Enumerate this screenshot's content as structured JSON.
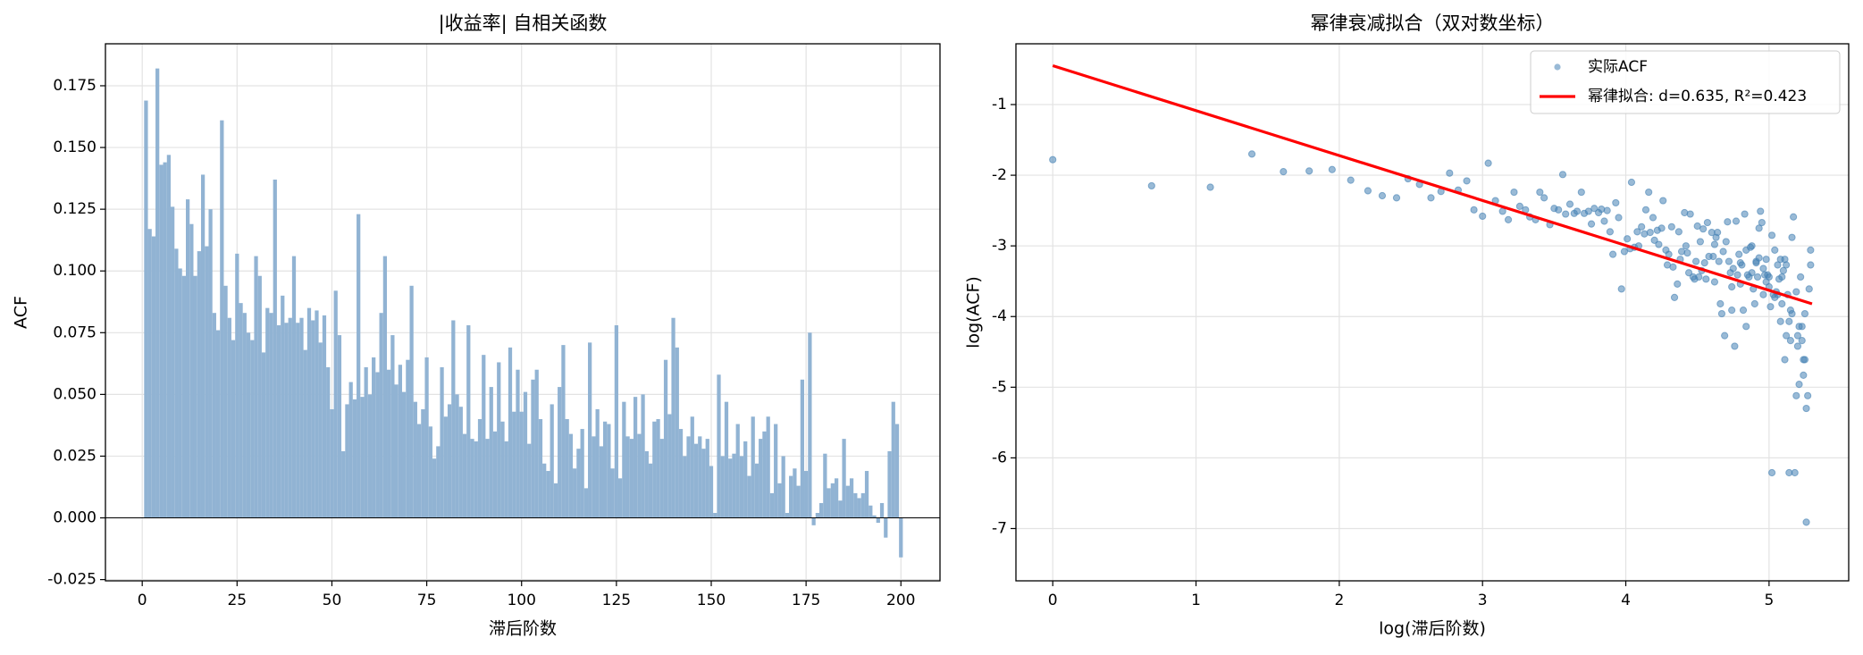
{
  "chart_data": [
    {
      "type": "bar",
      "title": "|收益率| 自相关函数",
      "xlabel": "滞后阶数",
      "ylabel": "ACF",
      "color": "#91b3d3",
      "grid": true,
      "x": [
        1,
        2,
        3,
        4,
        5,
        6,
        7,
        8,
        9,
        10,
        11,
        12,
        13,
        14,
        15,
        16,
        17,
        18,
        19,
        20,
        21,
        22,
        23,
        24,
        25,
        26,
        27,
        28,
        29,
        30,
        31,
        32,
        33,
        34,
        35,
        36,
        37,
        38,
        39,
        40,
        41,
        42,
        43,
        44,
        45,
        46,
        47,
        48,
        49,
        50,
        51,
        52,
        53,
        54,
        55,
        56,
        57,
        58,
        59,
        60,
        61,
        62,
        63,
        64,
        65,
        66,
        67,
        68,
        69,
        70,
        71,
        72,
        73,
        74,
        75,
        76,
        77,
        78,
        79,
        80,
        81,
        82,
        83,
        84,
        85,
        86,
        87,
        88,
        89,
        90,
        91,
        92,
        93,
        94,
        95,
        96,
        97,
        98,
        99,
        100,
        101,
        102,
        103,
        104,
        105,
        106,
        107,
        108,
        109,
        110,
        111,
        112,
        113,
        114,
        115,
        116,
        117,
        118,
        119,
        120,
        121,
        122,
        123,
        124,
        125,
        126,
        127,
        128,
        129,
        130,
        131,
        132,
        133,
        134,
        135,
        136,
        137,
        138,
        139,
        140,
        141,
        142,
        143,
        144,
        145,
        146,
        147,
        148,
        149,
        150,
        151,
        152,
        153,
        154,
        155,
        156,
        157,
        158,
        159,
        160,
        161,
        162,
        163,
        164,
        165,
        166,
        167,
        168,
        169,
        170,
        171,
        172,
        173,
        174,
        175,
        176,
        177,
        178,
        179,
        180,
        181,
        182,
        183,
        184,
        185,
        186,
        187,
        188,
        189,
        190,
        191,
        192,
        193,
        194,
        195,
        196,
        197,
        198,
        199,
        200
      ],
      "values": [
        0.169,
        0.117,
        0.114,
        0.182,
        0.143,
        0.144,
        0.147,
        0.126,
        0.109,
        0.101,
        0.098,
        0.129,
        0.119,
        0.098,
        0.108,
        0.139,
        0.11,
        0.125,
        0.083,
        0.076,
        0.161,
        0.094,
        0.081,
        0.072,
        0.107,
        0.087,
        0.083,
        0.075,
        0.072,
        0.106,
        0.098,
        0.067,
        0.085,
        0.083,
        0.137,
        0.078,
        0.09,
        0.079,
        0.081,
        0.106,
        0.079,
        0.081,
        0.068,
        0.085,
        0.08,
        0.084,
        0.071,
        0.082,
        0.061,
        0.044,
        0.092,
        0.074,
        0.027,
        0.046,
        0.055,
        0.048,
        0.123,
        0.049,
        0.061,
        0.05,
        0.065,
        0.059,
        0.083,
        0.106,
        0.06,
        0.074,
        0.054,
        0.062,
        0.051,
        0.064,
        0.094,
        0.047,
        0.038,
        0.044,
        0.065,
        0.037,
        0.024,
        0.029,
        0.061,
        0.041,
        0.046,
        0.08,
        0.05,
        0.045,
        0.034,
        0.078,
        0.032,
        0.031,
        0.04,
        0.066,
        0.032,
        0.053,
        0.035,
        0.063,
        0.039,
        0.031,
        0.069,
        0.043,
        0.06,
        0.043,
        0.051,
        0.03,
        0.056,
        0.06,
        0.04,
        0.022,
        0.019,
        0.046,
        0.014,
        0.053,
        0.07,
        0.04,
        0.034,
        0.02,
        0.028,
        0.036,
        0.012,
        0.071,
        0.033,
        0.044,
        0.029,
        0.039,
        0.038,
        0.02,
        0.078,
        0.016,
        0.047,
        0.033,
        0.032,
        0.049,
        0.034,
        0.05,
        0.027,
        0.022,
        0.039,
        0.04,
        0.032,
        0.064,
        0.042,
        0.081,
        0.069,
        0.036,
        0.025,
        0.033,
        0.041,
        0.03,
        0.033,
        0.028,
        0.032,
        0.021,
        0.002,
        0.058,
        0.025,
        0.047,
        0.024,
        0.026,
        0.038,
        0.025,
        0.031,
        0.017,
        0.041,
        0.022,
        0.032,
        0.035,
        0.041,
        0.01,
        0.038,
        0.014,
        0.025,
        0.002,
        0.017,
        0.02,
        0.013,
        0.056,
        0.019,
        0.075,
        -0.003,
        0.002,
        0.006,
        0.026,
        0.012,
        0.014,
        0.016,
        0.007,
        0.032,
        0.013,
        0.016,
        0.01,
        0.008,
        0.01,
        0.019,
        0.005,
        0.001,
        -0.002,
        0.006,
        -0.008,
        0.027,
        0.047,
        0.038,
        -0.016
      ],
      "xlim": [
        -9.7,
        210.3
      ],
      "ylim": [
        -0.0255,
        0.192
      ],
      "xticks": [
        0,
        25,
        50,
        75,
        100,
        125,
        150,
        175,
        200
      ],
      "yticks": [
        -0.025,
        {
          "value": 0,
          "label": "0.000"
        },
        0.025,
        {
          "value": 0.05,
          "label": "0.050"
        },
        0.075,
        {
          "value": 0.1,
          "label": "0.100"
        },
        0.125,
        {
          "value": 0.15,
          "label": "0.150"
        },
        0.175
      ]
    },
    {
      "type": "scatter",
      "title": "幂律衰减拟合（双对数坐标）",
      "xlabel": "log(滞后阶数)",
      "ylabel": "log(ACF)",
      "grid": true,
      "legend": "upper right",
      "xlim": [
        -0.257,
        5.556
      ],
      "ylim": [
        -7.74,
        -0.14
      ],
      "xticks": [
        0,
        1,
        2,
        3,
        4,
        5
      ],
      "yticks": [
        -7,
        -6,
        -5,
        -4,
        -3,
        -2,
        -1
      ],
      "series": [
        {
          "name": "实际ACF",
          "color": "#4682b4",
          "type": "scatter",
          "x": [
            0,
            0.69,
            1.1,
            1.39,
            1.61,
            1.79,
            1.95,
            2.08,
            2.2,
            2.3,
            2.4,
            2.48,
            2.56,
            2.64,
            2.71,
            2.77,
            2.83,
            2.89,
            2.94,
            3.0,
            3.04,
            3.09,
            3.14,
            3.18,
            3.22,
            3.26,
            3.3,
            3.33,
            3.37,
            3.4,
            3.43,
            3.47,
            3.5,
            3.53,
            3.56,
            3.58,
            3.61,
            3.64,
            3.66,
            3.69,
            3.71,
            3.74,
            3.76,
            3.78,
            3.81,
            3.83,
            3.85,
            3.87,
            3.89,
            3.91,
            3.93,
            3.95,
            3.97,
            3.99,
            4.01,
            4.03,
            4.04,
            4.06,
            4.08,
            4.09,
            4.11,
            4.13,
            4.14,
            4.16,
            4.17,
            4.19,
            4.2,
            4.22,
            4.23,
            4.25,
            4.26,
            4.28,
            4.29,
            4.3,
            4.32,
            4.33,
            4.34,
            4.36,
            4.37,
            4.38,
            4.39,
            4.41,
            4.42,
            4.43,
            4.44,
            4.45,
            4.47,
            4.48,
            4.49,
            4.5,
            4.51,
            4.52,
            4.53,
            4.54,
            4.55,
            4.56,
            4.57,
            4.58,
            4.6,
            4.61,
            4.62,
            4.62,
            4.63,
            4.64,
            4.65,
            4.66,
            4.67,
            4.68,
            4.69,
            4.7,
            4.71,
            4.72,
            4.73,
            4.74,
            4.74,
            4.75,
            4.76,
            4.77,
            4.78,
            4.79,
            4.8,
            4.8,
            4.81,
            4.82,
            4.83,
            4.84,
            4.84,
            4.85,
            4.86,
            4.87,
            4.88,
            4.88,
            4.89,
            4.9,
            4.91,
            4.91,
            4.92,
            4.93,
            4.93,
            4.94,
            4.95,
            4.96,
            4.96,
            4.97,
            4.98,
            4.98,
            4.99,
            5.0,
            5.0,
            5.01,
            5.02,
            5.02,
            5.03,
            5.04,
            5.04,
            5.05,
            5.06,
            5.06,
            5.07,
            5.08,
            5.08,
            5.09,
            5.09,
            5.1,
            5.11,
            5.11,
            5.12,
            5.12,
            5.13,
            5.14,
            5.14,
            5.15,
            5.15,
            5.16,
            5.16,
            5.17,
            5.18,
            5.19,
            5.19,
            5.2,
            5.2,
            5.21,
            5.21,
            5.22,
            5.23,
            5.23,
            5.24,
            5.24,
            5.25,
            5.25,
            5.26,
            5.26,
            5.27,
            5.28,
            5.29,
            5.29
          ],
          "values": [
            -1.78,
            -2.15,
            -2.17,
            -1.7,
            -1.95,
            -1.94,
            -1.92,
            -2.07,
            -2.22,
            -2.29,
            -2.32,
            -2.05,
            -2.13,
            -2.32,
            -2.23,
            -1.97,
            -2.21,
            -2.08,
            -2.49,
            -2.58,
            -1.83,
            -2.36,
            -2.51,
            -2.63,
            -2.24,
            -2.44,
            -2.49,
            -2.59,
            -2.63,
            -2.24,
            -2.32,
            -2.7,
            -2.47,
            -2.49,
            -1.99,
            -2.55,
            -2.41,
            -2.54,
            -2.51,
            -2.24,
            -2.54,
            -2.51,
            -2.69,
            -2.47,
            -2.53,
            -2.48,
            -2.65,
            -2.5,
            -2.8,
            -3.12,
            -2.39,
            -2.6,
            -3.61,
            -3.08,
            -2.9,
            -3.04,
            -2.1,
            -3.02,
            -2.8,
            -3.0,
            -2.73,
            -2.83,
            -2.49,
            -2.24,
            -2.81,
            -2.6,
            -2.92,
            -2.78,
            -2.98,
            -2.75,
            -2.36,
            -3.06,
            -3.27,
            -3.12,
            -2.73,
            -3.3,
            -3.73,
            -3.54,
            -2.8,
            -3.19,
            -3.08,
            -2.53,
            -3.0,
            -3.1,
            -3.38,
            -2.55,
            -3.44,
            -3.47,
            -3.22,
            -2.72,
            -3.44,
            -2.94,
            -3.35,
            -2.76,
            -3.24,
            -3.47,
            -2.67,
            -3.15,
            -2.81,
            -3.15,
            -2.98,
            -3.51,
            -2.88,
            -2.81,
            -3.22,
            -3.82,
            -3.96,
            -3.08,
            -4.27,
            -2.94,
            -2.66,
            -3.22,
            -3.38,
            -3.91,
            -3.58,
            -3.32,
            -4.42,
            -2.65,
            -3.41,
            -3.12,
            -3.54,
            -3.24,
            -3.27,
            -3.91,
            -2.55,
            -4.14,
            -3.06,
            -3.41,
            -3.44,
            -3.02,
            -3.38,
            -3.0,
            -3.61,
            -3.82,
            -3.24,
            -3.22,
            -3.44,
            -2.75,
            -3.17,
            -2.51,
            -2.67,
            -3.32,
            -3.69,
            -3.41,
            -3.19,
            -3.51,
            -3.41,
            -3.58,
            -3.44,
            -3.86,
            -6.21,
            -2.85,
            -3.69,
            -3.06,
            -3.73,
            -3.65,
            -3.27,
            -3.69,
            -3.47,
            -4.07,
            -3.19,
            -3.82,
            -3.44,
            -3.35,
            -3.19,
            -4.61,
            -3.27,
            -4.27,
            -3.69,
            -6.21,
            -4.07,
            -3.91,
            -4.34,
            -2.88,
            -3.96,
            -2.59,
            -6.21,
            -5.12,
            -3.65,
            -4.42,
            -4.27,
            -4.14,
            -4.96,
            -3.44,
            -4.34,
            -4.14,
            -4.61,
            -4.83,
            -4.61,
            -3.96,
            -5.3,
            -6.91,
            -5.12,
            -3.61,
            -3.06,
            -3.27
          ]
        },
        {
          "name": "幂律拟合: d=0.635, R²=0.423",
          "color": "#ff0000",
          "type": "line",
          "x": [
            0,
            5.3
          ],
          "values": [
            -0.45,
            -3.82
          ]
        }
      ]
    }
  ]
}
